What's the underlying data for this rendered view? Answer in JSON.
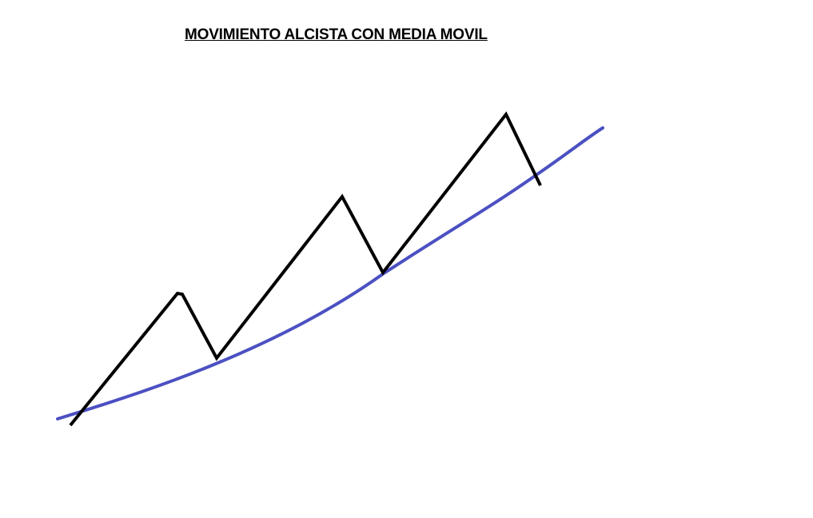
{
  "title": "MOVIMIENTO ALCISTA CON MEDIA MOVIL",
  "colors": {
    "price_line": "#000000",
    "moving_average": "#4b50c2"
  }
}
